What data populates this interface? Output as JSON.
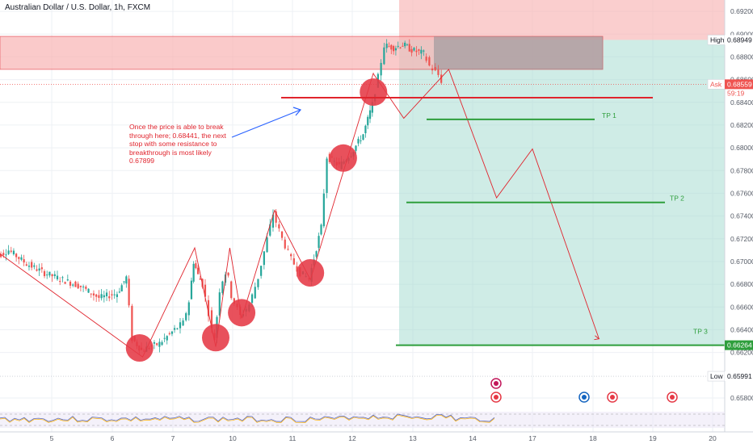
{
  "header": {
    "title": "Australian Dollar / U.S. Dollar, 1h, FXCM"
  },
  "annotation": {
    "text": "Once the price is able to break through here; 0.68441, the next stop with some resistance to breakthrough is most likely 0.67899"
  },
  "colors": {
    "up": "#26a69a",
    "down": "#ef5350",
    "zone": "#f8b4b4",
    "target_zone": "#a8dcd1",
    "resistance": "#e0242d",
    "tp": "#2e9e3c",
    "arrow": "#2962ff",
    "circle": "#e53945"
  },
  "chart_data": {
    "type": "candlestick",
    "symbol": "Australian Dollar / U.S. Dollar",
    "timeframe": "1h",
    "source": "FXCM",
    "x_labels": [
      "5",
      "6",
      "7",
      "10",
      "11",
      "12",
      "13",
      "14",
      "17",
      "18",
      "19",
      "20"
    ],
    "x_index": [
      5,
      6,
      7,
      10,
      11,
      12,
      13,
      14,
      17,
      18,
      19,
      20
    ],
    "y_ticks": [
      "0.69200",
      "0.69000",
      "0.68800",
      "0.68600",
      "0.68400",
      "0.68200",
      "0.68000",
      "0.67800",
      "0.67600",
      "0.67400",
      "0.67200",
      "0.67000",
      "0.66800",
      "0.66600",
      "0.66400",
      "0.66200",
      "0.65800"
    ],
    "ylim": [
      0.6575,
      0.693
    ],
    "grid": true,
    "price_path": [
      [
        4.0,
        0.6702
      ],
      [
        4.3,
        0.671
      ],
      [
        4.6,
        0.6698
      ],
      [
        4.9,
        0.669
      ],
      [
        5.2,
        0.6684
      ],
      [
        5.5,
        0.6678
      ],
      [
        5.8,
        0.6668
      ],
      [
        6.1,
        0.6672
      ],
      [
        6.25,
        0.6686
      ],
      [
        6.35,
        0.6632
      ],
      [
        6.5,
        0.6622
      ],
      [
        6.8,
        0.6628
      ],
      [
        7.1,
        0.664
      ],
      [
        7.4,
        0.6646
      ],
      [
        7.6,
        0.6665
      ],
      [
        7.75,
        0.67
      ],
      [
        7.9,
        0.6688
      ],
      [
        8.1,
        0.668
      ],
      [
        8.3,
        0.6668
      ],
      [
        8.5,
        0.6655
      ],
      [
        8.7,
        0.664
      ],
      [
        8.85,
        0.6632
      ],
      [
        9.0,
        0.6652
      ],
      [
        9.2,
        0.6675
      ],
      [
        9.4,
        0.6684
      ],
      [
        9.6,
        0.669
      ],
      [
        9.8,
        0.6685
      ],
      [
        10.0,
        0.667
      ],
      [
        10.15,
        0.6652
      ],
      [
        10.3,
        0.6662
      ],
      [
        10.45,
        0.6686
      ],
      [
        10.6,
        0.672
      ],
      [
        10.7,
        0.6742
      ],
      [
        10.85,
        0.672
      ],
      [
        11.0,
        0.6702
      ],
      [
        11.15,
        0.669
      ],
      [
        11.3,
        0.6685
      ],
      [
        11.5,
        0.673
      ],
      [
        11.6,
        0.6792
      ],
      [
        11.8,
        0.6784
      ],
      [
        12.0,
        0.6795
      ],
      [
        12.2,
        0.6812
      ],
      [
        12.35,
        0.6838
      ],
      [
        12.45,
        0.6862
      ],
      [
        12.55,
        0.689
      ],
      [
        12.7,
        0.6888
      ],
      [
        12.85,
        0.6891
      ],
      [
        13.0,
        0.6886
      ],
      [
        13.2,
        0.6883
      ],
      [
        13.3,
        0.6872
      ],
      [
        13.45,
        0.6864
      ],
      [
        13.5,
        0.6859
      ]
    ],
    "levels": {
      "high": 0.68949,
      "ask": 0.68559,
      "low": 0.65991,
      "resistance": 0.68441,
      "tp1": 0.6825,
      "tp2": 0.6752,
      "tp3": 0.66264
    },
    "zone": {
      "from": 0.6869,
      "to": 0.6898
    },
    "projection": [
      [
        12.35,
        0.6865
      ],
      [
        12.85,
        0.6826
      ],
      [
        13.6,
        0.6869
      ],
      [
        14.4,
        0.6756
      ],
      [
        15.0,
        0.6799
      ],
      [
        16.1,
        0.6632
      ]
    ],
    "tags": {
      "high_label": "High",
      "high_value": "0.68949",
      "ask_label": "Ask",
      "ask_value": "0.68559",
      "countdown": "59:19",
      "low_label": "Low",
      "low_value": "0.65991",
      "tp3_value": "0.66264"
    },
    "targets": [
      "TP 1",
      "TP 2",
      "TP 3"
    ]
  }
}
